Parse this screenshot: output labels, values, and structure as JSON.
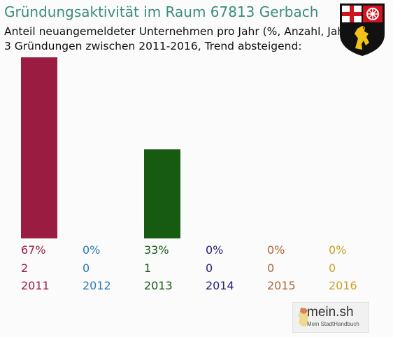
{
  "title": "Gründungsaktivität im Raum 67813 Gerbach",
  "subtitle_line1": "Anteil neuangemeldeter Unternehmen pro Jahr (%, Anzahl, Jahr)",
  "subtitle_line2": "3 Gründungen zwischen 2011-2016, Trend absteigend:",
  "crest_icon": "coat-of-arms-rhineland-palatinate",
  "logo": {
    "name": "mein.sh",
    "tagline": "Mein StadtHandbuch",
    "icon": "germany-map-icon"
  },
  "chart_data": {
    "type": "bar",
    "categories": [
      "2011",
      "2012",
      "2013",
      "2014",
      "2015",
      "2016"
    ],
    "values": [
      67,
      0,
      33,
      0,
      0,
      0
    ],
    "percent_labels": [
      "67%",
      "0%",
      "33%",
      "0%",
      "0%",
      "0%"
    ],
    "counts": [
      2,
      0,
      1,
      0,
      0,
      0
    ],
    "colors": [
      "#9a1c40",
      "#2a7ab5",
      "#175b12",
      "#23207a",
      "#b0653a",
      "#c9a227"
    ],
    "ylim": [
      0,
      67
    ],
    "grid": false,
    "legend": "none"
  }
}
